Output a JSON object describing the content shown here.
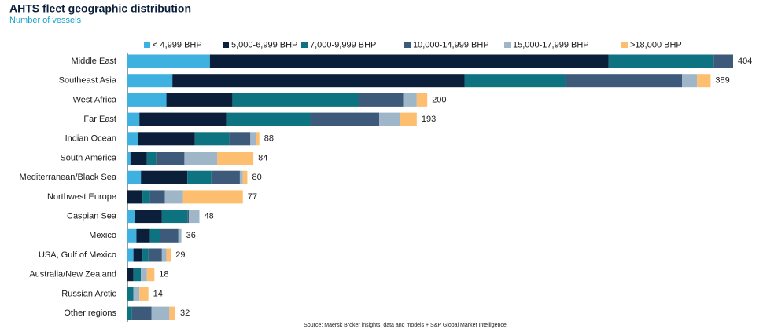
{
  "chart_data": {
    "type": "stacked-bar-horizontal",
    "title": "AHTS fleet geographic distribution",
    "subtitle": "Number of vessels",
    "source": "Source: Maersk Broker insights, data and models + S&P Global Market Intelligence",
    "categories": [
      "Middle East",
      "Southeast Asia",
      "West Africa",
      "Far East",
      "Indian Ocean",
      "South America",
      "Mediterranean/Black Sea",
      "Northwest Europe",
      "Caspian Sea",
      "Mexico",
      "USA, Gulf of Mexico",
      "Australia/New Zealand",
      "Russian Arctic",
      "Other regions"
    ],
    "totals": [
      404,
      389,
      200,
      193,
      88,
      84,
      80,
      77,
      48,
      36,
      29,
      18,
      14,
      32
    ],
    "series": [
      {
        "name": "< 4,999 BHP",
        "color": "#3fb1e0",
        "values": [
          55,
          30,
          26,
          8,
          7,
          2,
          9,
          0,
          5,
          6,
          4,
          0,
          0,
          0
        ]
      },
      {
        "name": "5,000-6,999 BHP",
        "color": "#0b1f3a",
        "values": [
          266,
          195,
          44,
          58,
          38,
          11,
          31,
          10,
          18,
          9,
          6,
          4,
          0,
          0
        ]
      },
      {
        "name": "7,000-9,999 BHP",
        "color": "#0e7381",
        "values": [
          70,
          67,
          84,
          56,
          23,
          6,
          16,
          5,
          17,
          7,
          4,
          5,
          4,
          3
        ]
      },
      {
        "name": "10,000-14,999 BHP",
        "color": "#3d5a7a",
        "values": [
          13,
          78,
          30,
          46,
          14,
          19,
          19,
          10,
          1,
          12,
          9,
          0,
          0,
          13
        ]
      },
      {
        "name": "15,000-17,999 BHP",
        "color": "#9fb6c8",
        "values": [
          0,
          10,
          9,
          14,
          4,
          22,
          2,
          12,
          7,
          2,
          3,
          4,
          4,
          12
        ]
      },
      {
        "name": ">18,000 BHP",
        "color": "#fdbf6f",
        "values": [
          0,
          9,
          7,
          11,
          2,
          24,
          3,
          40,
          0,
          0,
          3,
          5,
          6,
          4
        ]
      }
    ]
  }
}
